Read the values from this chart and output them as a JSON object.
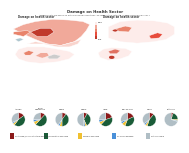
{
  "title": "Damage on Health Sector",
  "subtitle": "Assessments based on actual physical conditions as seen on satellite images from January 2017",
  "bg_color": "#ffffff",
  "map_colors": {
    "very_high": "#c0392b",
    "high": "#e74c3c",
    "medium_high": "#e8836b",
    "medium": "#f1a99a",
    "low": "#f9d4cd",
    "very_low": "#fdecea",
    "no_data": "#cccccc",
    "water": "#aec6cf"
  },
  "pie_data": [
    {
      "label": "Aleppo",
      "slices": [
        0.15,
        0.45,
        0.05,
        0.03,
        0.32
      ]
    },
    {
      "label": "Rural\nDamascus",
      "slices": [
        0.12,
        0.5,
        0.08,
        0.05,
        0.25
      ]
    },
    {
      "label": "Homs",
      "slices": [
        0.1,
        0.4,
        0.06,
        0.04,
        0.4
      ]
    },
    {
      "label": "Hama",
      "slices": [
        0.08,
        0.35,
        0.04,
        0.03,
        0.5
      ]
    },
    {
      "label": "Idleb",
      "slices": [
        0.2,
        0.42,
        0.07,
        0.06,
        0.25
      ]
    },
    {
      "label": "Deir-ez-Zor",
      "slices": [
        0.18,
        0.38,
        0.09,
        0.05,
        0.3
      ]
    },
    {
      "label": "Dar'a",
      "slices": [
        0.11,
        0.44,
        0.05,
        0.04,
        0.36
      ]
    },
    {
      "label": "Lattakia",
      "slices": [
        0.05,
        0.2,
        0.03,
        0.02,
        0.7
      ]
    }
  ],
  "pie_colors": [
    "#8b1a1a",
    "#1a5c38",
    "#f0c030",
    "#4a90d9",
    "#b0bec5"
  ],
  "legend_labels": [
    "Destroyed (Severe structural damage)",
    "Moderately damaged",
    "Possibly damaged",
    "No visible damage",
    "Not assessable"
  ]
}
